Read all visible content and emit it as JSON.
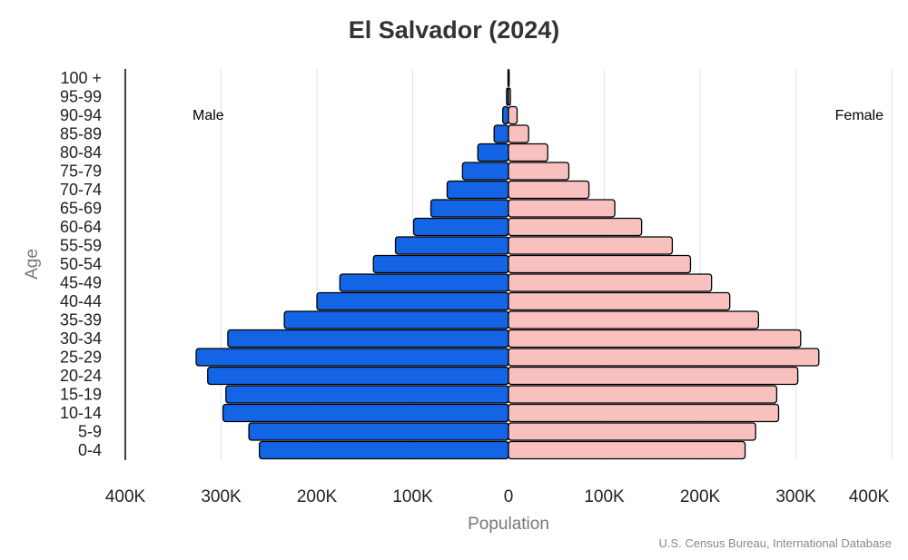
{
  "chart_data": {
    "type": "bar",
    "orientation": "horizontal-population-pyramid",
    "title": "El Salvador (2024)",
    "xlabel": "Population",
    "ylabel": "Age",
    "source": "U.S. Census Bureau, International Database",
    "xlim": [
      -400000,
      400000
    ],
    "x_ticks": [
      "400K",
      "300K",
      "200K",
      "100K",
      "0",
      "100K",
      "200K",
      "300K",
      "400K"
    ],
    "grid": "vertical",
    "categories": [
      "0-4",
      "5-9",
      "10-14",
      "15-19",
      "20-24",
      "25-29",
      "30-34",
      "35-39",
      "40-44",
      "45-49",
      "50-54",
      "55-59",
      "60-64",
      "65-69",
      "70-74",
      "75-79",
      "80-84",
      "85-89",
      "90-94",
      "95-99",
      "100 +"
    ],
    "series": [
      {
        "name": "Male",
        "color": "#1464e6",
        "side": "left",
        "values": [
          260000,
          271000,
          298000,
          295000,
          314000,
          326000,
          293000,
          234000,
          200000,
          176000,
          141000,
          118000,
          99000,
          81000,
          64000,
          48000,
          32000,
          15000,
          6000,
          2000,
          500
        ]
      },
      {
        "name": "Female",
        "color": "#f9c0c0",
        "side": "right",
        "values": [
          247000,
          258000,
          282000,
          280000,
          302000,
          324000,
          305000,
          261000,
          231000,
          212000,
          190000,
          171000,
          139000,
          111000,
          84000,
          63000,
          41000,
          21000,
          9000,
          2000,
          700
        ]
      }
    ]
  }
}
